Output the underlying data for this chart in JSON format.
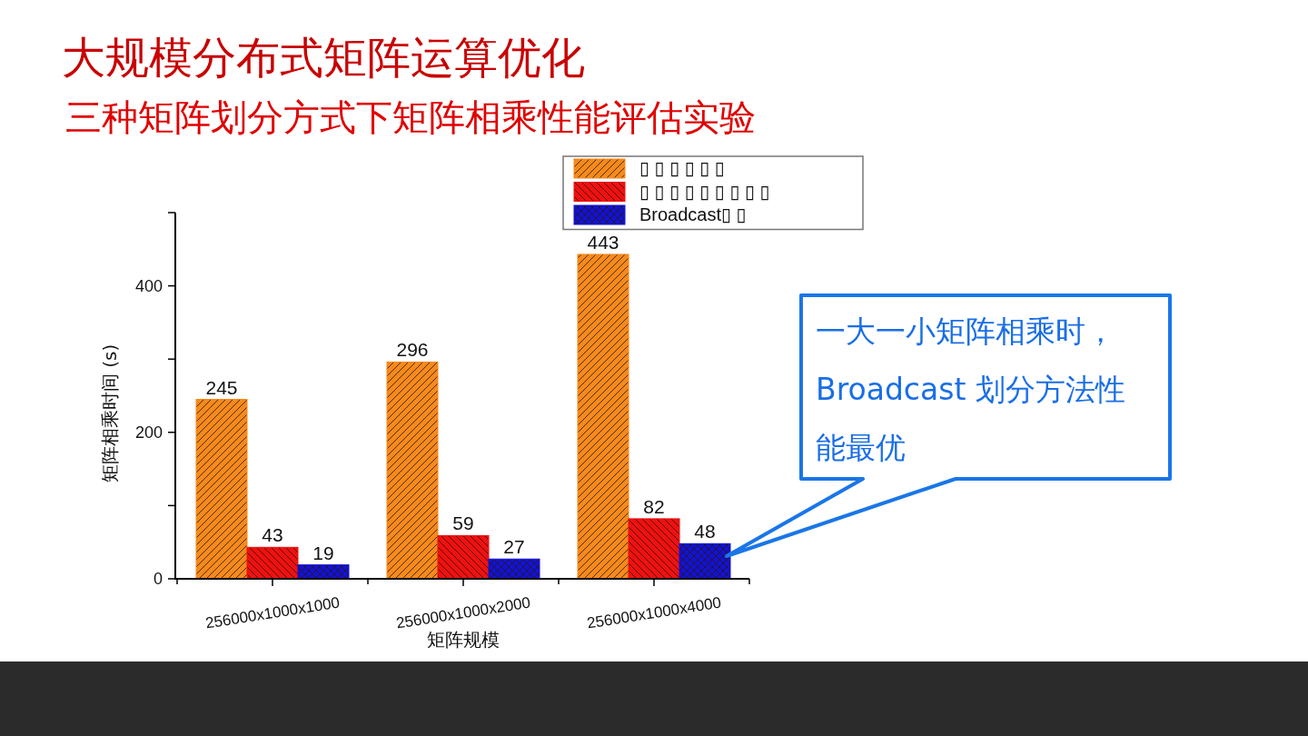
{
  "chart_data": {
    "type": "bar",
    "title": "大规模分布式矩阵运算优化",
    "subtitle": "三种矩阵划分方式下矩阵相乘性能评估实验",
    "xlabel": "矩阵规模",
    "ylabel": "矩阵相乘时间 (s)",
    "categories": [
      "256000x1000x1000",
      "256000x1000x2000",
      "256000x1000x4000"
    ],
    "series": [
      {
        "name": "▯ ▯ ▯ ▯ ▯ ▯",
        "color": "#f7891c",
        "values": [
          245,
          296,
          443
        ]
      },
      {
        "name": "▯ ▯ ▯ ▯ ▯ ▯ ▯ ▯ ▯",
        "color": "#ee1111",
        "values": [
          43,
          59,
          82
        ]
      },
      {
        "name": "Broadcast▯ ▯",
        "color": "#1212d6",
        "values": [
          19,
          27,
          48
        ]
      }
    ],
    "ylim": [
      0,
      500
    ],
    "yticks": [
      0,
      {
        "value": 100,
        "label": null
      },
      200,
      {
        "value": 300,
        "label": null
      },
      400,
      {
        "value": 500,
        "label": null
      }
    ],
    "data_labels": true,
    "legend": "top right",
    "annotations": [
      "一大一小矩阵相乘时，Broadcast 划分方法性能最优"
    ]
  }
}
